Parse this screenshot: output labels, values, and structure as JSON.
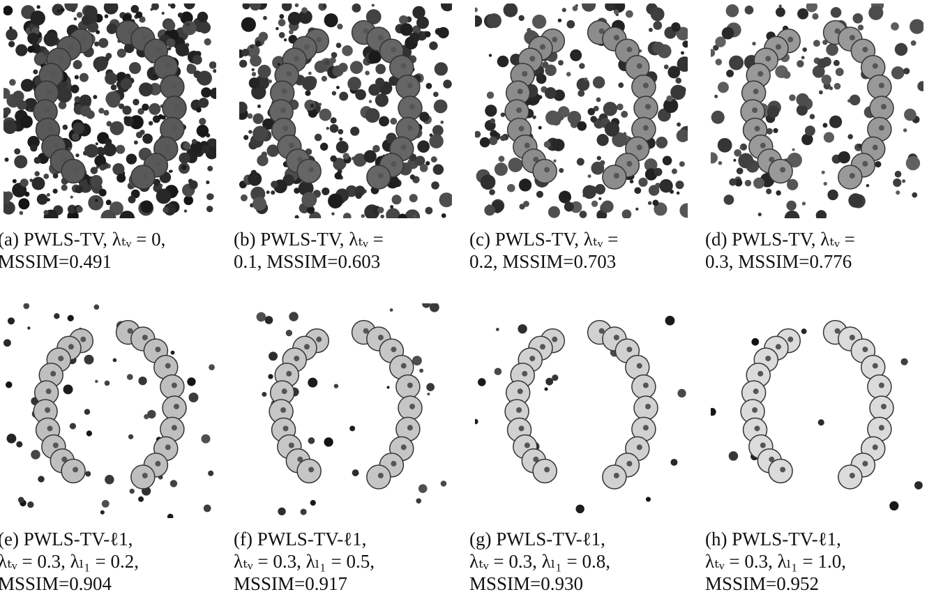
{
  "panels": [
    {
      "caption": [
        "(a) PWLS-TV, λₜᵥ = 0,",
        "MSSIM=0.491"
      ]
    },
    {
      "caption": [
        "(b) PWLS-TV, λₜᵥ =",
        "0.1, MSSIM=0.603"
      ]
    },
    {
      "caption": [
        "(c) PWLS-TV, λₜᵥ =",
        "0.2, MSSIM=0.703"
      ]
    },
    {
      "caption": [
        "(d) PWLS-TV, λₜᵥ =",
        "0.3, MSSIM=0.776"
      ]
    },
    {
      "caption": [
        "(e) PWLS-TV-ℓ1,",
        "λₜᵥ = 0.3, λₗ₁ = 0.2,",
        "MSSIM=0.904"
      ]
    },
    {
      "caption": [
        "(f) PWLS-TV-ℓ1,",
        "λₜᵥ = 0.3, λₗ₁ = 0.5,",
        "MSSIM=0.917"
      ]
    },
    {
      "caption": [
        "(g) PWLS-TV-ℓ1,",
        "λₜᵥ = 0.3, λₗ₁ = 0.8,",
        "MSSIM=0.930"
      ]
    },
    {
      "caption": [
        "(h) PWLS-TV-ℓ1,",
        "λₜᵥ = 0.3, λₗ₁ = 1.0,",
        "MSSIM=0.952"
      ]
    }
  ]
}
